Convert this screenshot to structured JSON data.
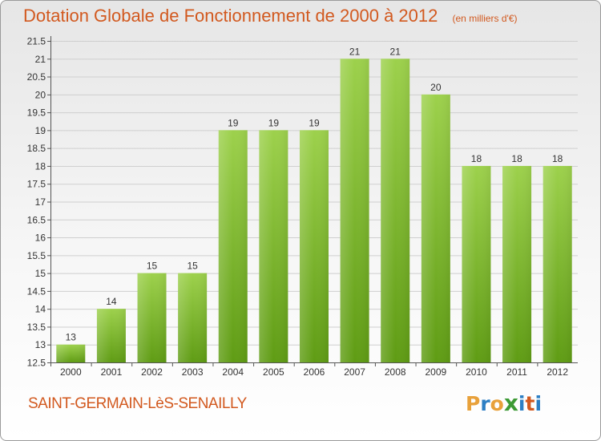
{
  "header": {
    "title": "Dotation Globale de Fonctionnement de 2000 à 2012",
    "subtitle": "(en milliers d'€)"
  },
  "footer": {
    "commune": "SAINT-GERMAIN-LèS-SENAILLY",
    "logo_text": "Proxiti"
  },
  "colors": {
    "bar_top": "#9dd14c",
    "bar_bottom": "#5f9c14",
    "title": "#d2591f"
  },
  "chart_data": {
    "type": "bar",
    "title": "Dotation Globale de Fonctionnement de 2000 à 2012",
    "subtitle": "(en milliers d'€)",
    "categories": [
      "2000",
      "2001",
      "2002",
      "2003",
      "2004",
      "2005",
      "2006",
      "2007",
      "2008",
      "2009",
      "2010",
      "2011",
      "2012"
    ],
    "values": [
      13,
      14,
      15,
      15,
      19,
      19,
      19,
      21,
      21,
      20,
      18,
      18,
      18
    ],
    "labels": [
      "13",
      "14",
      "15",
      "15",
      "19",
      "19",
      "19",
      "21",
      "21",
      "20",
      "18",
      "18",
      "18"
    ],
    "ylim": [
      12.5,
      21.5
    ],
    "yticks": [
      "12.5",
      "13",
      "13.5",
      "14",
      "14.5",
      "15",
      "15.5",
      "16",
      "16.5",
      "17",
      "17.5",
      "18",
      "18.5",
      "19",
      "19.5",
      "20",
      "20.5",
      "21",
      "21.5"
    ],
    "xlabel": "",
    "ylabel": "",
    "grid": true
  }
}
